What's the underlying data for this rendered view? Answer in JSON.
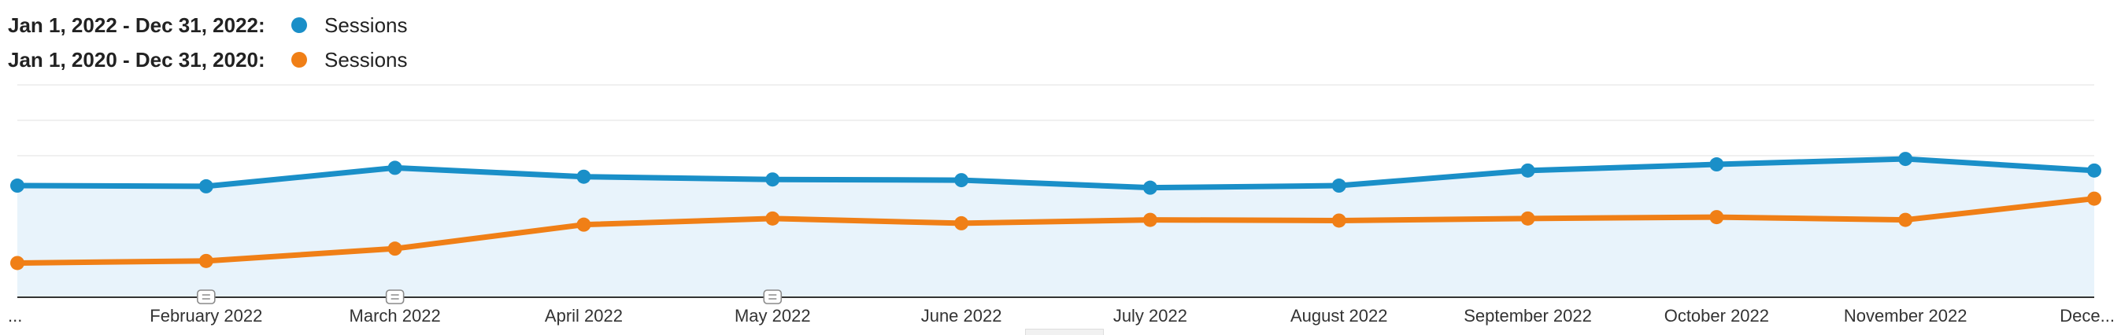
{
  "chart_data": {
    "type": "line",
    "categories": [
      "...",
      "February 2022",
      "March 2022",
      "April 2022",
      "May 2022",
      "June 2022",
      "July 2022",
      "August 2022",
      "September 2022",
      "October 2022",
      "November 2022",
      "Dece..."
    ],
    "series": [
      {
        "name": "Sessions",
        "range_label": "Jan 1, 2022 - Dec 31, 2022:",
        "color": "#1a8fc8",
        "area_fill": "#e8f3fb",
        "values": [
          143,
          142,
          169,
          156,
          152,
          151,
          140,
          143,
          165,
          174,
          182,
          165
        ]
      },
      {
        "name": "Sessions",
        "range_label": "Jan 1, 2020 - Dec 31, 2020:",
        "color": "#f07f16",
        "values": [
          30,
          33,
          51,
          86,
          95,
          88,
          93,
          92,
          95,
          97,
          93,
          124
        ]
      }
    ],
    "ylim": [
      -20,
      290
    ],
    "grid": true,
    "legend_position": "top-left",
    "annotations": [
      {
        "category_index": 1,
        "icon": "comment-icon"
      },
      {
        "category_index": 2,
        "icon": "comment-icon"
      },
      {
        "category_index": 4,
        "icon": "comment-icon"
      }
    ]
  }
}
